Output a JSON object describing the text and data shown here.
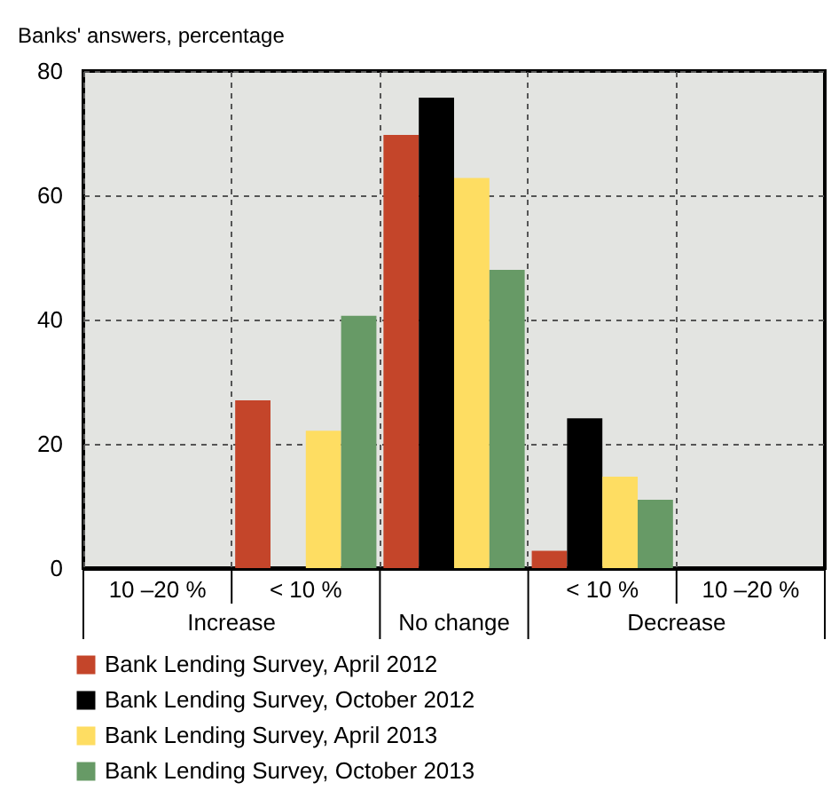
{
  "chart_data": {
    "type": "bar",
    "ylabel": "Banks' answers, percentage",
    "categories": [
      "10 –20 %",
      "< 10 %",
      null,
      "< 10 %",
      "10 –20 %"
    ],
    "series": [
      {
        "name": "Bank Lending Survey, April 2012",
        "color": "#c4452a",
        "values": [
          null,
          27,
          69.7,
          2.8,
          null
        ]
      },
      {
        "name": "Bank Lending Survey, October 2012",
        "color": "#000000",
        "values": [
          null,
          null,
          75.7,
          24.1,
          null
        ]
      },
      {
        "name": "Bank Lending Survey, April 2013",
        "color": "#fedd62",
        "values": [
          null,
          22.1,
          62.8,
          14.7,
          null
        ]
      },
      {
        "name": "Bank Lending Survey, October 2013",
        "color": "#679a66",
        "values": [
          null,
          40.6,
          48,
          11,
          null
        ]
      }
    ],
    "annotations": [
      "Increase",
      "No change",
      "Decrease"
    ],
    "ylim": [
      0,
      80
    ],
    "yticks": [
      0,
      20,
      40,
      60,
      80
    ],
    "grid": true,
    "legend": "bottom"
  }
}
